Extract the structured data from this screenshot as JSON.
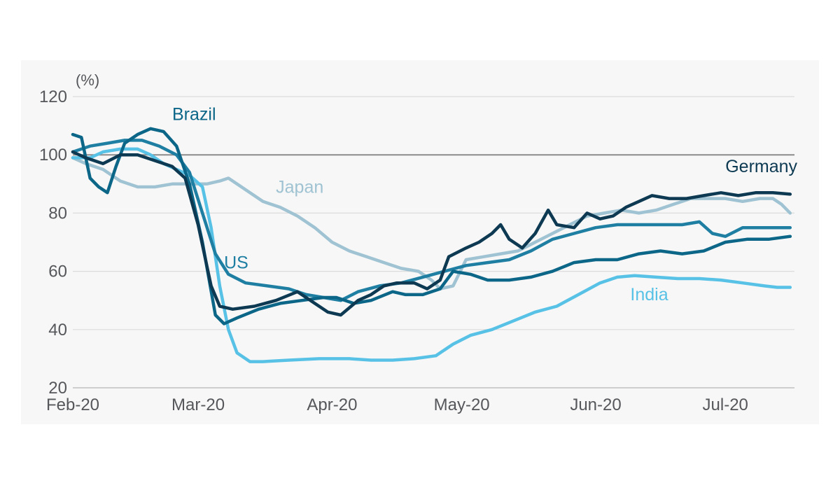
{
  "chart_data": {
    "type": "line",
    "unit_label": "(%)",
    "xlabel": "",
    "ylabel": "",
    "ylim": [
      20,
      120
    ],
    "yticks": [
      20,
      40,
      60,
      80,
      100,
      120
    ],
    "xlim": [
      "2020-02-01",
      "2020-07-17"
    ],
    "xticks": [
      {
        "label": "Feb-20",
        "date": "2020-02-01"
      },
      {
        "label": "Mar-20",
        "date": "2020-03-01"
      },
      {
        "label": "Apr-20",
        "date": "2020-04-01"
      },
      {
        "label": "May-20",
        "date": "2020-05-01"
      },
      {
        "label": "Jun-20",
        "date": "2020-06-01"
      },
      {
        "label": "Jul-20",
        "date": "2020-07-01"
      }
    ],
    "reference_line": 100,
    "grid": "horizontal",
    "series": [
      {
        "name": "Japan",
        "color": "#9fc3d2",
        "points": [
          [
            "2020-02-01",
            99
          ],
          [
            "2020-02-04",
            97
          ],
          [
            "2020-02-08",
            95
          ],
          [
            "2020-02-12",
            91
          ],
          [
            "2020-02-16",
            89
          ],
          [
            "2020-02-20",
            89
          ],
          [
            "2020-02-24",
            90
          ],
          [
            "2020-02-28",
            90
          ],
          [
            "2020-03-03",
            90
          ],
          [
            "2020-03-06",
            91
          ],
          [
            "2020-03-08",
            92
          ],
          [
            "2020-03-10",
            90
          ],
          [
            "2020-03-13",
            87
          ],
          [
            "2020-03-16",
            84
          ],
          [
            "2020-03-20",
            82
          ],
          [
            "2020-03-24",
            79
          ],
          [
            "2020-03-28",
            75
          ],
          [
            "2020-04-01",
            70
          ],
          [
            "2020-04-05",
            67
          ],
          [
            "2020-04-09",
            65
          ],
          [
            "2020-04-13",
            63
          ],
          [
            "2020-04-17",
            61
          ],
          [
            "2020-04-21",
            60
          ],
          [
            "2020-04-24",
            57
          ],
          [
            "2020-04-26",
            54
          ],
          [
            "2020-04-29",
            55
          ],
          [
            "2020-05-02",
            64
          ],
          [
            "2020-05-06",
            65
          ],
          [
            "2020-05-10",
            66
          ],
          [
            "2020-05-14",
            67
          ],
          [
            "2020-05-18",
            70
          ],
          [
            "2020-05-22",
            73
          ],
          [
            "2020-05-26",
            76
          ],
          [
            "2020-05-30",
            79
          ],
          [
            "2020-06-03",
            80
          ],
          [
            "2020-06-07",
            81
          ],
          [
            "2020-06-11",
            80
          ],
          [
            "2020-06-15",
            81
          ],
          [
            "2020-06-19",
            83
          ],
          [
            "2020-06-23",
            85
          ],
          [
            "2020-06-27",
            85
          ],
          [
            "2020-07-01",
            85
          ],
          [
            "2020-07-05",
            84
          ],
          [
            "2020-07-09",
            85
          ],
          [
            "2020-07-12",
            85
          ],
          [
            "2020-07-14",
            83
          ],
          [
            "2020-07-16",
            80
          ]
        ]
      },
      {
        "name": "India",
        "color": "#58c1e6",
        "points": [
          [
            "2020-02-01",
            99
          ],
          [
            "2020-02-05",
            99
          ],
          [
            "2020-02-08",
            101
          ],
          [
            "2020-02-12",
            102
          ],
          [
            "2020-02-16",
            102
          ],
          [
            "2020-02-19",
            100
          ],
          [
            "2020-02-22",
            97
          ],
          [
            "2020-02-25",
            95
          ],
          [
            "2020-02-28",
            93
          ],
          [
            "2020-03-02",
            89
          ],
          [
            "2020-03-04",
            75
          ],
          [
            "2020-03-06",
            55
          ],
          [
            "2020-03-08",
            40
          ],
          [
            "2020-03-10",
            32
          ],
          [
            "2020-03-13",
            29
          ],
          [
            "2020-03-16",
            29
          ],
          [
            "2020-03-22",
            29.5
          ],
          [
            "2020-03-29",
            30
          ],
          [
            "2020-04-05",
            30
          ],
          [
            "2020-04-10",
            29.5
          ],
          [
            "2020-04-15",
            29.5
          ],
          [
            "2020-04-20",
            30
          ],
          [
            "2020-04-25",
            31
          ],
          [
            "2020-04-29",
            35
          ],
          [
            "2020-05-03",
            38
          ],
          [
            "2020-05-08",
            40
          ],
          [
            "2020-05-13",
            43
          ],
          [
            "2020-05-18",
            46
          ],
          [
            "2020-05-23",
            48
          ],
          [
            "2020-05-28",
            52
          ],
          [
            "2020-06-02",
            56
          ],
          [
            "2020-06-06",
            58
          ],
          [
            "2020-06-10",
            58.5
          ],
          [
            "2020-06-15",
            58
          ],
          [
            "2020-06-20",
            57.5
          ],
          [
            "2020-06-25",
            57.5
          ],
          [
            "2020-06-30",
            57
          ],
          [
            "2020-07-05",
            56
          ],
          [
            "2020-07-10",
            55
          ],
          [
            "2020-07-13",
            54.5
          ],
          [
            "2020-07-16",
            54.5
          ]
        ]
      },
      {
        "name": "US",
        "color": "#1f7fa3",
        "points": [
          [
            "2020-02-01",
            101
          ],
          [
            "2020-02-05",
            103
          ],
          [
            "2020-02-09",
            104
          ],
          [
            "2020-02-13",
            105
          ],
          [
            "2020-02-17",
            105
          ],
          [
            "2020-02-21",
            103
          ],
          [
            "2020-02-25",
            100
          ],
          [
            "2020-02-28",
            94
          ],
          [
            "2020-03-02",
            80
          ],
          [
            "2020-03-05",
            66
          ],
          [
            "2020-03-08",
            59
          ],
          [
            "2020-03-12",
            56
          ],
          [
            "2020-03-17",
            55
          ],
          [
            "2020-03-22",
            54
          ],
          [
            "2020-03-26",
            52
          ],
          [
            "2020-03-30",
            51
          ],
          [
            "2020-04-03",
            50
          ],
          [
            "2020-04-07",
            53
          ],
          [
            "2020-04-12",
            55
          ],
          [
            "2020-04-17",
            56
          ],
          [
            "2020-04-22",
            58
          ],
          [
            "2020-04-27",
            60
          ],
          [
            "2020-05-02",
            62
          ],
          [
            "2020-05-07",
            63
          ],
          [
            "2020-05-12",
            64
          ],
          [
            "2020-05-17",
            67
          ],
          [
            "2020-05-22",
            71
          ],
          [
            "2020-05-27",
            73
          ],
          [
            "2020-06-01",
            75
          ],
          [
            "2020-06-06",
            76
          ],
          [
            "2020-06-11",
            76
          ],
          [
            "2020-06-16",
            76
          ],
          [
            "2020-06-21",
            76
          ],
          [
            "2020-06-25",
            77
          ],
          [
            "2020-06-28",
            73
          ],
          [
            "2020-07-01",
            72
          ],
          [
            "2020-07-05",
            75
          ],
          [
            "2020-07-10",
            75
          ],
          [
            "2020-07-16",
            75
          ]
        ]
      },
      {
        "name": "Brazil",
        "color": "#0c6688",
        "points": [
          [
            "2020-02-01",
            107
          ],
          [
            "2020-02-03",
            106
          ],
          [
            "2020-02-05",
            92
          ],
          [
            "2020-02-07",
            89
          ],
          [
            "2020-02-09",
            87
          ],
          [
            "2020-02-11",
            96
          ],
          [
            "2020-02-13",
            104
          ],
          [
            "2020-02-16",
            107
          ],
          [
            "2020-02-19",
            109
          ],
          [
            "2020-02-22",
            108
          ],
          [
            "2020-02-25",
            103
          ],
          [
            "2020-02-28",
            90
          ],
          [
            "2020-03-02",
            70
          ],
          [
            "2020-03-05",
            45
          ],
          [
            "2020-03-07",
            42
          ],
          [
            "2020-03-10",
            44
          ],
          [
            "2020-03-15",
            47
          ],
          [
            "2020-03-20",
            49
          ],
          [
            "2020-03-25",
            50
          ],
          [
            "2020-03-30",
            51
          ],
          [
            "2020-04-02",
            51
          ],
          [
            "2020-04-06",
            49
          ],
          [
            "2020-04-10",
            50
          ],
          [
            "2020-04-15",
            53
          ],
          [
            "2020-04-18",
            52
          ],
          [
            "2020-04-22",
            52
          ],
          [
            "2020-04-26",
            54
          ],
          [
            "2020-04-29",
            60
          ],
          [
            "2020-05-03",
            59
          ],
          [
            "2020-05-07",
            57
          ],
          [
            "2020-05-12",
            57
          ],
          [
            "2020-05-17",
            58
          ],
          [
            "2020-05-22",
            60
          ],
          [
            "2020-05-27",
            63
          ],
          [
            "2020-06-01",
            64
          ],
          [
            "2020-06-06",
            64
          ],
          [
            "2020-06-11",
            66
          ],
          [
            "2020-06-16",
            67
          ],
          [
            "2020-06-21",
            66
          ],
          [
            "2020-06-26",
            67
          ],
          [
            "2020-07-01",
            70
          ],
          [
            "2020-07-06",
            71
          ],
          [
            "2020-07-11",
            71
          ],
          [
            "2020-07-16",
            72
          ]
        ]
      },
      {
        "name": "Germany",
        "color": "#0d3a52",
        "points": [
          [
            "2020-02-01",
            101
          ],
          [
            "2020-02-04",
            99
          ],
          [
            "2020-02-08",
            97
          ],
          [
            "2020-02-12",
            100
          ],
          [
            "2020-02-16",
            100
          ],
          [
            "2020-02-20",
            98
          ],
          [
            "2020-02-24",
            96
          ],
          [
            "2020-02-27",
            92
          ],
          [
            "2020-03-01",
            76
          ],
          [
            "2020-03-04",
            55
          ],
          [
            "2020-03-06",
            48
          ],
          [
            "2020-03-09",
            47
          ],
          [
            "2020-03-14",
            48
          ],
          [
            "2020-03-19",
            50
          ],
          [
            "2020-03-24",
            53
          ],
          [
            "2020-03-28",
            49
          ],
          [
            "2020-03-31",
            46
          ],
          [
            "2020-04-03",
            45
          ],
          [
            "2020-04-07",
            50
          ],
          [
            "2020-04-10",
            52
          ],
          [
            "2020-04-13",
            55
          ],
          [
            "2020-04-16",
            56
          ],
          [
            "2020-04-20",
            56
          ],
          [
            "2020-04-23",
            54
          ],
          [
            "2020-04-26",
            57
          ],
          [
            "2020-04-28",
            65
          ],
          [
            "2020-05-02",
            68
          ],
          [
            "2020-05-05",
            70
          ],
          [
            "2020-05-08",
            73
          ],
          [
            "2020-05-10",
            76
          ],
          [
            "2020-05-12",
            71
          ],
          [
            "2020-05-15",
            68
          ],
          [
            "2020-05-18",
            73
          ],
          [
            "2020-05-21",
            81
          ],
          [
            "2020-05-23",
            76
          ],
          [
            "2020-05-27",
            75
          ],
          [
            "2020-05-30",
            80
          ],
          [
            "2020-06-02",
            78
          ],
          [
            "2020-06-05",
            79
          ],
          [
            "2020-06-08",
            82
          ],
          [
            "2020-06-11",
            84
          ],
          [
            "2020-06-14",
            86
          ],
          [
            "2020-06-18",
            85
          ],
          [
            "2020-06-22",
            85
          ],
          [
            "2020-06-26",
            86
          ],
          [
            "2020-06-30",
            87
          ],
          [
            "2020-07-04",
            86
          ],
          [
            "2020-07-08",
            87
          ],
          [
            "2020-07-12",
            87
          ],
          [
            "2020-07-16",
            86.5
          ]
        ]
      }
    ],
    "series_labels": [
      {
        "text": "Brazil",
        "color": "#0c6688",
        "date": "2020-02-24",
        "value": 112
      },
      {
        "text": "Japan",
        "color": "#9fc3d2",
        "date": "2020-03-19",
        "value": 87
      },
      {
        "text": "Germany",
        "color": "#0d3a52",
        "date": "2020-07-01",
        "value": 94
      },
      {
        "text": "US",
        "color": "#1f7fa3",
        "date": "2020-03-07",
        "value": 61
      },
      {
        "text": "India",
        "color": "#58c1e6",
        "date": "2020-06-09",
        "value": 50
      }
    ]
  }
}
